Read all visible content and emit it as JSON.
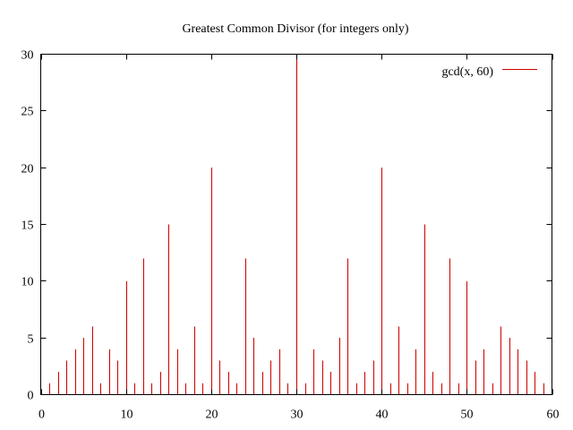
{
  "chart_data": {
    "type": "bar",
    "title": "Greatest Common Divisor (for integers only)",
    "xlabel": "",
    "ylabel": "",
    "xlim": [
      0,
      60
    ],
    "ylim": [
      0,
      30
    ],
    "x_ticks": [
      0,
      10,
      20,
      30,
      40,
      50,
      60
    ],
    "y_ticks": [
      0,
      5,
      10,
      15,
      20,
      25,
      30
    ],
    "grid": false,
    "legend_position": "top-right",
    "series": [
      {
        "name": "gcd(x, 60)",
        "color": "#cc0000",
        "x": [
          1,
          2,
          3,
          4,
          5,
          6,
          7,
          8,
          9,
          10,
          11,
          12,
          13,
          14,
          15,
          16,
          17,
          18,
          19,
          20,
          21,
          22,
          23,
          24,
          25,
          26,
          27,
          28,
          29,
          30,
          31,
          32,
          33,
          34,
          35,
          36,
          37,
          38,
          39,
          40,
          41,
          42,
          43,
          44,
          45,
          46,
          47,
          48,
          49,
          50,
          51,
          52,
          53,
          54,
          55,
          56,
          57,
          58,
          59
        ],
        "values": [
          1,
          2,
          3,
          4,
          5,
          6,
          1,
          4,
          3,
          10,
          1,
          12,
          1,
          2,
          15,
          4,
          1,
          6,
          1,
          20,
          3,
          2,
          1,
          12,
          5,
          2,
          3,
          4,
          1,
          30,
          1,
          4,
          3,
          2,
          5,
          12,
          1,
          2,
          3,
          20,
          1,
          6,
          1,
          4,
          15,
          2,
          1,
          12,
          1,
          10,
          3,
          4,
          1,
          6,
          5,
          4,
          3,
          2,
          1
        ]
      }
    ]
  }
}
